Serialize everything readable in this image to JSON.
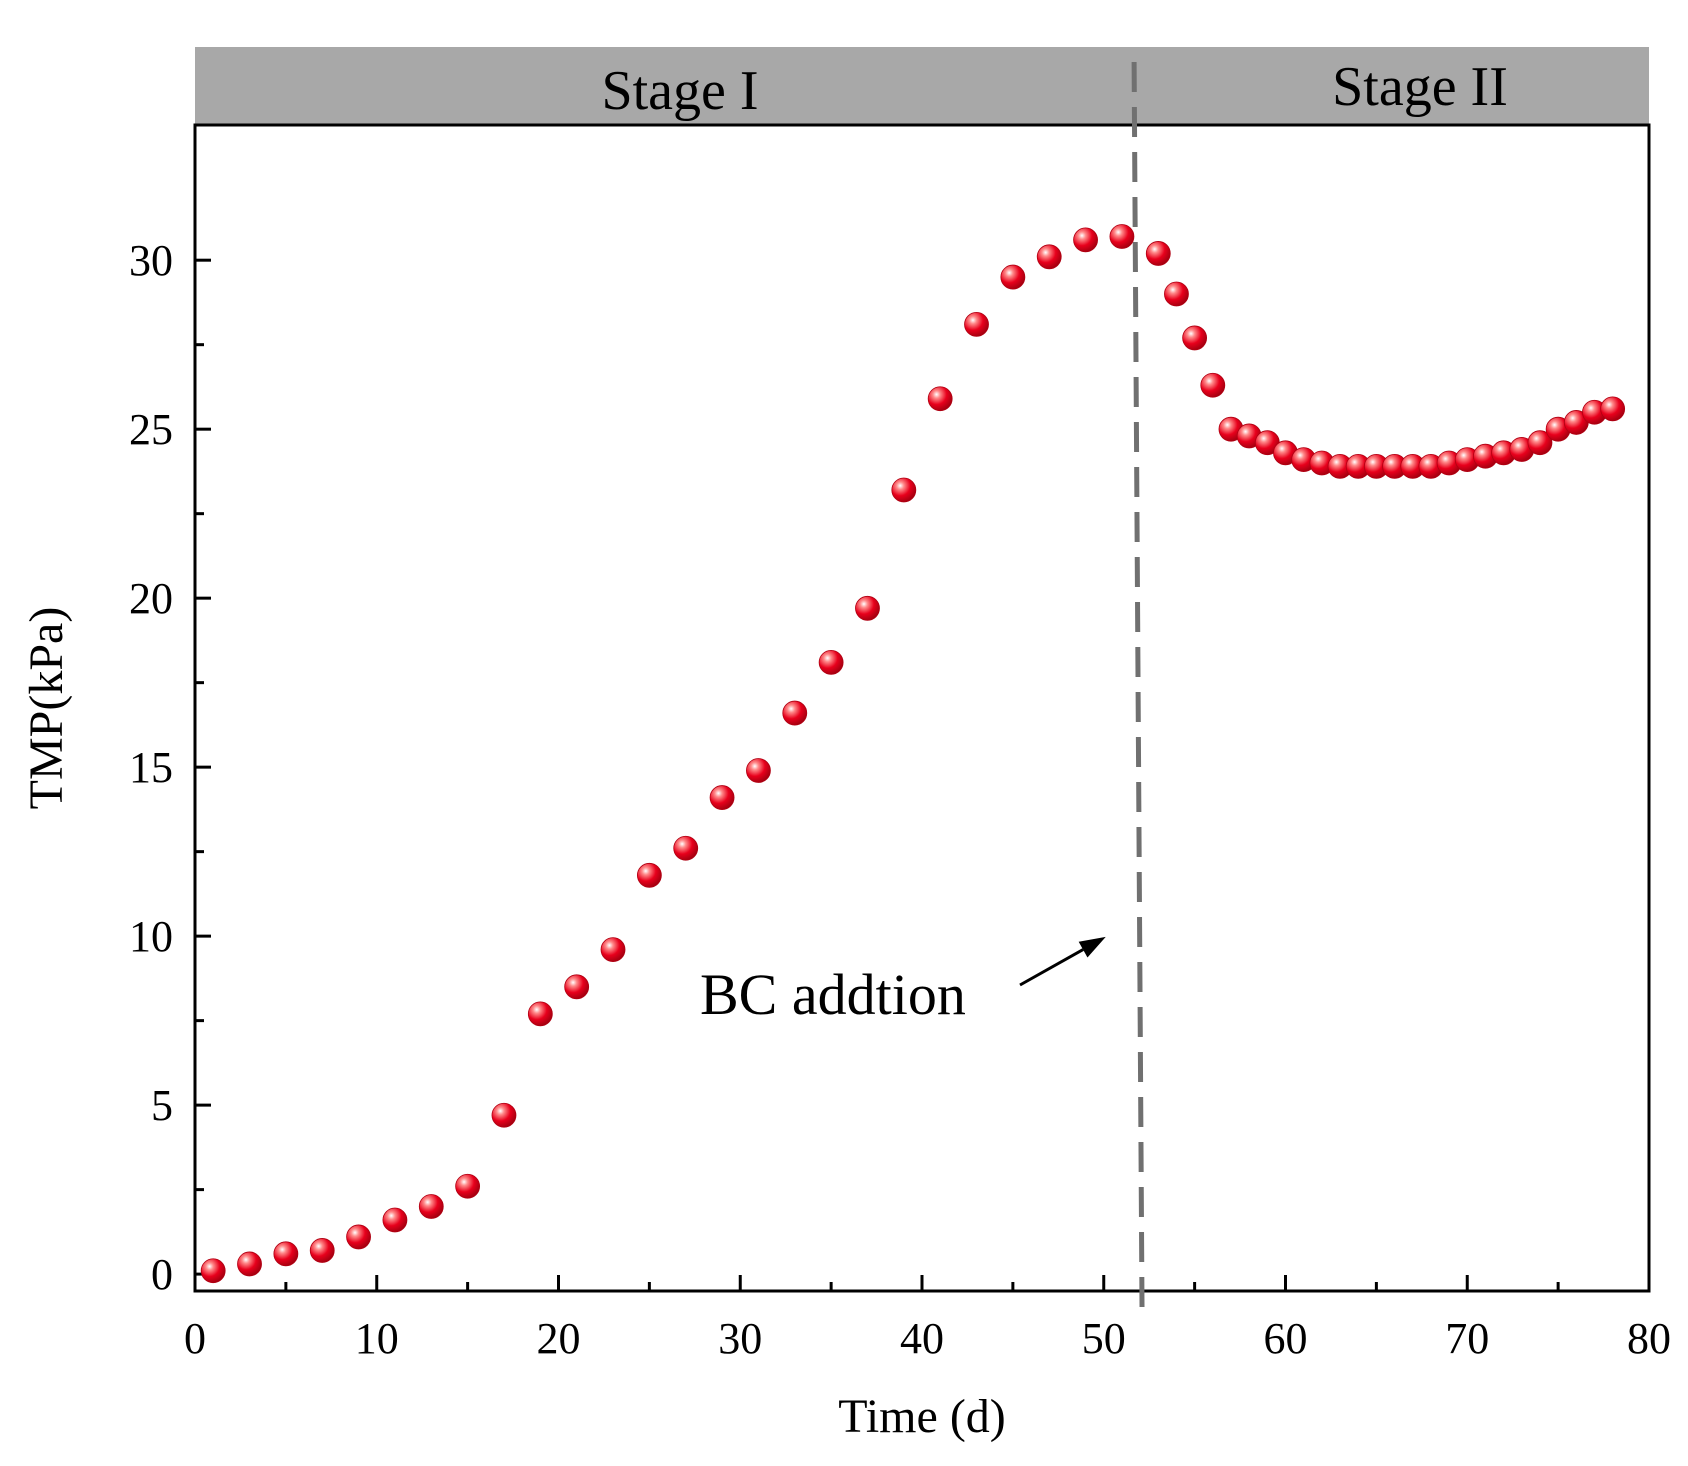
{
  "chart_data": {
    "type": "scatter",
    "title": "",
    "xlabel": "Time (d)",
    "ylabel": "TMP(kPa)",
    "xlim": [
      0,
      80
    ],
    "ylim": [
      -0.5,
      34
    ],
    "xticks": [
      0,
      10,
      20,
      30,
      40,
      50,
      60,
      70,
      80
    ],
    "yticks": [
      0,
      5,
      10,
      15,
      20,
      25,
      30
    ],
    "grid": false,
    "legend": "none",
    "stages": [
      {
        "label": "Stage I",
        "x_start": 0,
        "x_end": 52
      },
      {
        "label": "Stage II",
        "x_start": 52,
        "x_end": 80
      }
    ],
    "divider_x": 52,
    "annotation": {
      "text": "BC addtion",
      "points_to_x": 50,
      "points_to_y": 9.8
    },
    "marker_color": "#e8001c",
    "series": [
      {
        "name": "TMP",
        "x": [
          1,
          3,
          5,
          7,
          9,
          11,
          13,
          15,
          17,
          19,
          21,
          23,
          25,
          27,
          29,
          31,
          33,
          35,
          37,
          39,
          41,
          43,
          45,
          47,
          49,
          51,
          53,
          54,
          55,
          56,
          57,
          58,
          59,
          60,
          61,
          62,
          63,
          64,
          65,
          66,
          67,
          68,
          69,
          70,
          71,
          72,
          73,
          74,
          75,
          76,
          77,
          78
        ],
        "y": [
          0.1,
          0.3,
          0.6,
          0.7,
          1.1,
          1.6,
          2.0,
          2.6,
          4.7,
          7.7,
          8.5,
          9.6,
          11.8,
          12.6,
          14.1,
          14.9,
          16.6,
          18.1,
          19.7,
          23.2,
          25.9,
          28.1,
          29.5,
          30.1,
          30.6,
          30.7,
          30.2,
          29.0,
          27.7,
          26.3,
          25.0,
          24.8,
          24.6,
          24.3,
          24.1,
          24.0,
          23.9,
          23.9,
          23.9,
          23.9,
          23.9,
          23.9,
          24.0,
          24.1,
          24.2,
          24.3,
          24.4,
          24.6,
          25.0,
          25.2,
          25.5,
          25.6
        ]
      }
    ]
  }
}
